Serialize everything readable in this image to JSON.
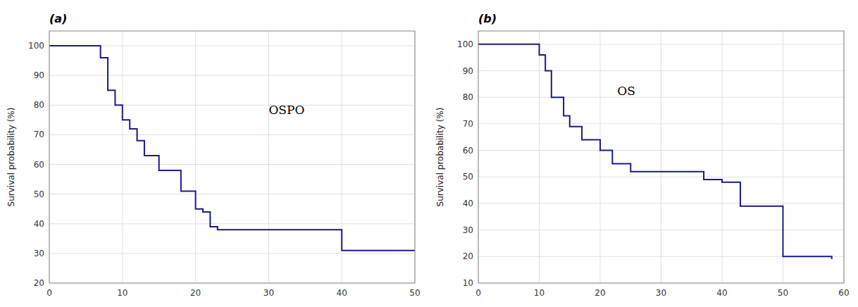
{
  "chart_data": [
    {
      "type": "step",
      "title": "(a)",
      "y_label": "Survival probability (%)",
      "x": [
        0,
        3,
        7,
        8,
        9,
        10,
        11,
        12,
        13,
        15,
        18,
        20,
        21,
        22,
        23,
        40,
        50
      ],
      "values": [
        100,
        100,
        96,
        85,
        80,
        75,
        72,
        68,
        63,
        58,
        51,
        45,
        44,
        39,
        38,
        31,
        31
      ],
      "color": "#1a1a8c",
      "xlim": [
        0,
        50
      ],
      "ylim": [
        20,
        105
      ],
      "xticks": [
        0,
        10,
        20,
        30,
        40,
        50
      ],
      "yticks": [
        20,
        30,
        40,
        50,
        60,
        70,
        80,
        90,
        100
      ],
      "grid": true,
      "annotations": [
        {
          "text": "OSPO",
          "x": 30,
          "y": 78
        }
      ]
    },
    {
      "type": "step",
      "title": "(b)",
      "y_label": "Survival probability (%)",
      "x": [
        0,
        8,
        10,
        11,
        12,
        14,
        15,
        17,
        20,
        22,
        25,
        37,
        40,
        43,
        50,
        58
      ],
      "values": [
        100,
        100,
        96,
        90,
        80,
        73,
        69,
        64,
        60,
        55,
        52,
        49,
        48,
        39,
        20,
        19
      ],
      "color": "#1a1a8c",
      "xlim": [
        0,
        60
      ],
      "ylim": [
        10,
        105
      ],
      "xticks": [
        0,
        10,
        20,
        30,
        40,
        50,
        60
      ],
      "yticks": [
        10,
        20,
        30,
        40,
        50,
        60,
        70,
        80,
        90,
        100
      ],
      "grid": true,
      "annotations": [
        {
          "text": "OS",
          "x": 22.8,
          "y": 82
        }
      ]
    }
  ]
}
